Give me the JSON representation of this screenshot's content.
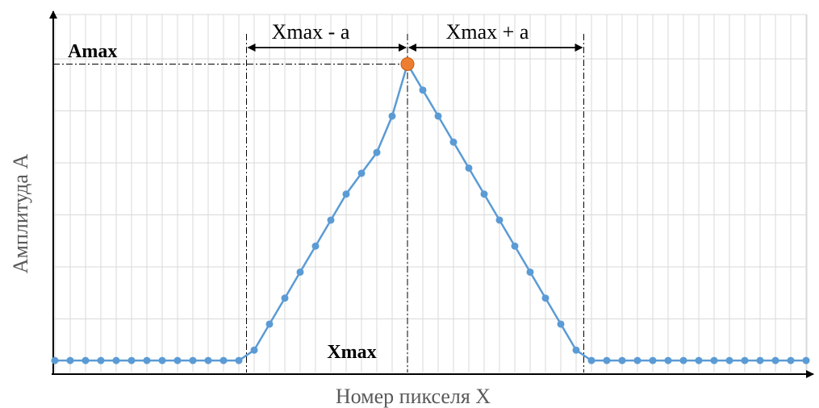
{
  "chart_data": {
    "type": "line",
    "xlabel": "Номер пикселя X",
    "ylabel": "Амплитуда A",
    "xlim": [
      0,
      50
    ],
    "ylim": [
      0,
      6
    ],
    "grid": "vertical gridlines every pixel, horizontal gridlines every unit",
    "series": [
      {
        "x": [
          0,
          1,
          2,
          3,
          4,
          5,
          6,
          7,
          8,
          9,
          10,
          11,
          12,
          13,
          14,
          15,
          16,
          17,
          18,
          19,
          20,
          21,
          22,
          23,
          24,
          25,
          26,
          27,
          28,
          29,
          30,
          31,
          32,
          33,
          34,
          35,
          36,
          37,
          38,
          39,
          40,
          41,
          42,
          43,
          44,
          45,
          46,
          47,
          48,
          49
        ],
        "values": [
          0.2,
          0.2,
          0.2,
          0.2,
          0.2,
          0.2,
          0.2,
          0.2,
          0.2,
          0.2,
          0.2,
          0.2,
          0.2,
          0.4,
          0.9,
          1.4,
          1.9,
          2.4,
          2.9,
          3.4,
          3.8,
          4.2,
          4.9,
          5.9,
          5.4,
          4.9,
          4.4,
          3.9,
          3.4,
          2.9,
          2.4,
          1.9,
          1.4,
          0.9,
          0.4,
          0.2,
          0.2,
          0.2,
          0.2,
          0.2,
          0.2,
          0.2,
          0.2,
          0.2,
          0.2,
          0.2,
          0.2,
          0.2,
          0.2,
          0.2
        ],
        "color": "#5b9bd5"
      }
    ],
    "peak": {
      "x": 23,
      "value": 5.9,
      "color": "#ed7d31"
    },
    "annotations": {
      "amax_label": "Amax",
      "xmax_label": "Xmax",
      "left_range_label": "Xmax - a",
      "right_range_label": "Xmax + a",
      "left_bound_x": 12.5,
      "right_bound_x": 34.5
    }
  }
}
